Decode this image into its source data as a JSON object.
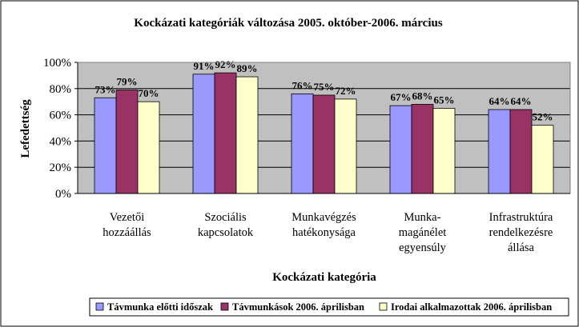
{
  "chart_data": {
    "type": "bar",
    "title": "Kockázati kategóriák változása 2005. október-2006. március",
    "xlabel": "Kockázati kategória",
    "ylabel": "Lefedettség",
    "ylim": [
      0,
      100
    ],
    "yticks": [
      "0%",
      "20%",
      "40%",
      "60%",
      "80%",
      "100%"
    ],
    "grid": true,
    "legend_position": "bottom-right",
    "categories": [
      [
        "Vezetői",
        "hozzáállás"
      ],
      [
        "Szociális",
        "kapcsolatok"
      ],
      [
        "Munkavégzés",
        "hatékonysága"
      ],
      [
        "Munka-",
        "magánélet",
        "egyensúly"
      ],
      [
        "Infrastruktúra",
        "rendelkezésre",
        "állása"
      ]
    ],
    "series": [
      {
        "name": "Távmunka előtti időszak",
        "values": [
          73,
          91,
          76,
          67,
          64
        ],
        "color": "#9999ff"
      },
      {
        "name": "Távmunkások 2006. áprilisban",
        "values": [
          79,
          92,
          75,
          68,
          64
        ],
        "color": "#993366"
      },
      {
        "name": "Irodai alkalmazottak 2006. áprilisban",
        "values": [
          70,
          89,
          72,
          65,
          52
        ],
        "color": "#ffffcc"
      }
    ],
    "data_labels": [
      [
        "73%",
        "91%",
        "76%",
        "67%",
        "64%"
      ],
      [
        "79%",
        "92%",
        "75%",
        "68%",
        "64%"
      ],
      [
        "70%",
        "89%",
        "72%",
        "65%",
        "52%"
      ]
    ],
    "plot_background": "#c0c0c0"
  }
}
